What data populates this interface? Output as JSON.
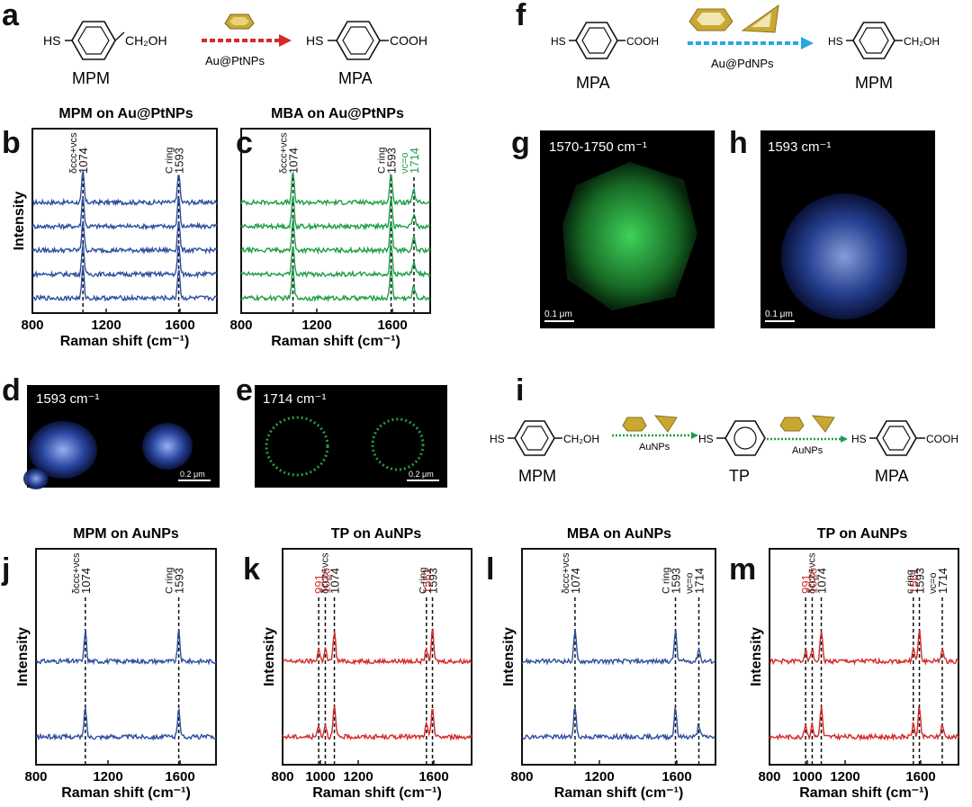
{
  "colors": {
    "blue": "#2f4f9f",
    "red": "#d42a2a",
    "green": "#1e9e48",
    "annot_red": "#d42a2a",
    "annot_green": "#1e9e48",
    "dot_red": "#e23c2c",
    "dot_blue": "#29a7e0",
    "dot_green": "#2a9a3e"
  },
  "panel_letters": {
    "a": "a",
    "b": "b",
    "c": "c",
    "d": "d",
    "e": "e",
    "f": "f",
    "g": "g",
    "h": "h",
    "i": "i",
    "j": "j",
    "k": "k",
    "l": "l",
    "m": "m"
  },
  "scheme_a": {
    "left_label": "MPM",
    "right_label": "MPA",
    "left_sub": "CH₂OH",
    "right_sub": "COOH",
    "hs": "HS",
    "catalyst": "Au@PtNPs"
  },
  "scheme_f": {
    "left_label": "MPA",
    "right_label": "MPM",
    "left_sub": "COOH",
    "right_sub": "CH₂OH",
    "hs": "HS",
    "catalyst": "Au@PdNPs"
  },
  "scheme_i": {
    "labels": [
      "MPM",
      "TP",
      "MPA"
    ],
    "subs": [
      "CH₂OH",
      "COOH"
    ],
    "hs": "HS",
    "catalyst1": "AuNPs",
    "catalyst2": "AuNPs"
  },
  "images": {
    "d": {
      "label": "1593 cm⁻¹",
      "scale": "0.2 μm"
    },
    "e": {
      "label": "1714 cm⁻¹",
      "scale": "0.2 μm"
    },
    "g": {
      "label": "1570-1750 cm⁻¹",
      "scale": "0.1 μm"
    },
    "h": {
      "label": "1593 cm⁻¹",
      "scale": "0.1 μm"
    }
  },
  "chart_data": [
    {
      "panel": "b",
      "type": "line",
      "title": "MPM on Au@PtNPs",
      "xlabel": "Raman shift (cm⁻¹)",
      "ylabel": "Intensity",
      "xlim": [
        800,
        1800
      ],
      "xticks": [
        "800",
        "1200",
        "1600"
      ],
      "n_spectra": 5,
      "color": "blue",
      "peaks": [
        {
          "x": 1074,
          "label": "1074",
          "assign": "δccc+νcs"
        },
        {
          "x": 1593,
          "label": "1593",
          "assign": "C ring"
        }
      ]
    },
    {
      "panel": "c",
      "type": "line",
      "title": "MBA on Au@PtNPs",
      "xlabel": "Raman shift (cm⁻¹)",
      "ylabel": "",
      "xlim": [
        800,
        1800
      ],
      "xticks": [
        "800",
        "1200",
        "1600"
      ],
      "n_spectra": 5,
      "color": "green",
      "peaks": [
        {
          "x": 1074,
          "label": "1074",
          "assign": "δccc+νcs"
        },
        {
          "x": 1593,
          "label": "1593",
          "assign": "C ring"
        },
        {
          "x": 1714,
          "label": "1714",
          "assign": "νc=o",
          "accent": "green"
        }
      ]
    },
    {
      "panel": "j",
      "type": "line",
      "title": "MPM on AuNPs",
      "xlabel": "Raman shift (cm⁻¹)",
      "ylabel": "Intensity",
      "xlim": [
        800,
        1800
      ],
      "xticks": [
        "800",
        "1200",
        "1600"
      ],
      "n_spectra": 2,
      "color": "blue",
      "peaks": [
        {
          "x": 1074,
          "label": "1074",
          "assign": "δccc+νcs"
        },
        {
          "x": 1593,
          "label": "1593",
          "assign": "C ring"
        }
      ]
    },
    {
      "panel": "k",
      "type": "line",
      "title": "TP on AuNPs",
      "xlabel": "Raman shift (cm⁻¹)",
      "ylabel": "Intensity",
      "xlim": [
        800,
        1800
      ],
      "xticks": [
        "800",
        "1000",
        "1200",
        "1600"
      ],
      "n_spectra": 2,
      "color": "red",
      "peaks": [
        {
          "x": 991,
          "label": "991",
          "accent": "red"
        },
        {
          "x": 1026,
          "label": "1026",
          "accent": "red"
        },
        {
          "x": 1074,
          "label": "1074",
          "assign": "δccc+νcs"
        },
        {
          "x": 1561,
          "label": "1561",
          "accent": "red"
        },
        {
          "x": 1593,
          "label": "1593",
          "assign": "C ring"
        }
      ]
    },
    {
      "panel": "l",
      "type": "line",
      "title": "MBA on AuNPs",
      "xlabel": "Raman shift (cm⁻¹)",
      "ylabel": "Intensity",
      "xlim": [
        800,
        1800
      ],
      "xticks": [
        "800",
        "1200",
        "1600"
      ],
      "n_spectra": 2,
      "color": "blue",
      "peaks": [
        {
          "x": 1074,
          "label": "1074",
          "assign": "δccc+νcs"
        },
        {
          "x": 1593,
          "label": "1593",
          "assign": "C ring"
        },
        {
          "x": 1714,
          "label": "1714",
          "assign": "νc=o"
        }
      ]
    },
    {
      "panel": "m",
      "type": "line",
      "title": "TP on AuNPs",
      "xlabel": "Raman shift (cm⁻¹)",
      "ylabel": "Intensity",
      "xlim": [
        800,
        1800
      ],
      "xticks": [
        "800",
        "1000",
        "1200",
        "1600"
      ],
      "n_spectra": 2,
      "color": "red",
      "peaks": [
        {
          "x": 991,
          "label": "991",
          "accent": "red"
        },
        {
          "x": 1026,
          "label": "1026",
          "accent": "red"
        },
        {
          "x": 1074,
          "label": "1074",
          "assign": "δccc+νcs"
        },
        {
          "x": 1561,
          "label": "1561",
          "accent": "red"
        },
        {
          "x": 1593,
          "label": "1593",
          "assign": "c ring"
        },
        {
          "x": 1714,
          "label": "1714",
          "assign": "νc=o"
        }
      ]
    }
  ]
}
